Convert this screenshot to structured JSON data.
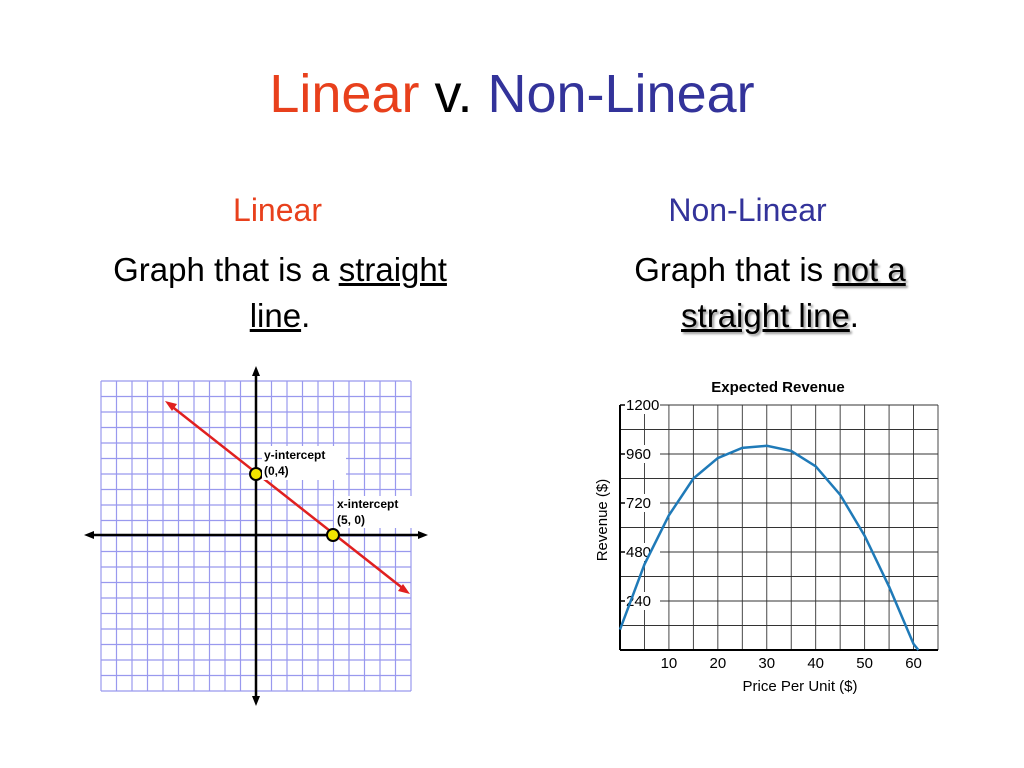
{
  "title": {
    "part1": "Linear",
    "part2": " v. ",
    "part3": "Non-Linear"
  },
  "left": {
    "heading": "Linear",
    "text_before": "Graph that is a ",
    "text_underline_1": "straight",
    "text_underline_2": "line",
    "text_after": "."
  },
  "right": {
    "heading": "Non-Linear",
    "text_before": "Graph that is ",
    "text_underline_1": "not a",
    "text_underline_2": "straight line",
    "text_after": "."
  },
  "colors": {
    "red": "#e8401c",
    "blue": "#33339a",
    "grid": "#9999ee",
    "line": "#e02020",
    "curve": "#1f7ab8"
  },
  "linear_graph": {
    "y_intercept_label": "y-intercept",
    "y_intercept_value": "(0,4)",
    "x_intercept_label": "x-intercept",
    "x_intercept_value": "(5, 0)"
  },
  "chart_data": {
    "type": "line",
    "title": "Expected Revenue",
    "xlabel": "Price Per Unit ($)",
    "ylabel": "Revenue ($)",
    "xlim": [
      0,
      65
    ],
    "ylim": [
      0,
      1200
    ],
    "x_ticks": [
      "10",
      "20",
      "30",
      "40",
      "50",
      "60"
    ],
    "y_ticks": [
      "240",
      "480",
      "720",
      "960",
      "1200"
    ],
    "grid": true,
    "series": [
      {
        "x": [
          0,
          5,
          10,
          15,
          20,
          25,
          30,
          35,
          40,
          45,
          50,
          55,
          60,
          61
        ],
        "y": [
          100,
          420,
          660,
          840,
          940,
          990,
          1000,
          975,
          900,
          760,
          560,
          310,
          30,
          0
        ]
      }
    ]
  }
}
